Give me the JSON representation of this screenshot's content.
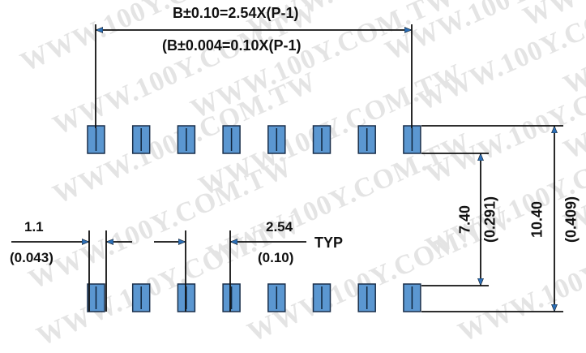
{
  "watermark": "WWW.100Y.COM.TW",
  "colors": {
    "pad_fill": "#5b97d1",
    "pad_stroke": "#1a2f4a",
    "line": "#111111",
    "watermark": "#e4e4e4"
  },
  "dimensions": {
    "top_formula": "B±0.10=2.54X(P-1)",
    "top_formula_inch": "(B±0.004=0.10X(P-1)",
    "pad_width": "1.1",
    "pad_width_inch": "(0.043)",
    "pitch": "2.54",
    "pitch_inch": "(0.10)",
    "pitch_typ": "TYP",
    "inner_row_spacing": "7.40",
    "inner_row_spacing_inch": "(0.291)",
    "outer_row_spacing": "10.40",
    "outer_row_spacing_inch": "(0.409)"
  },
  "pads": {
    "top_row_count": 8,
    "bottom_row_count": 8
  }
}
